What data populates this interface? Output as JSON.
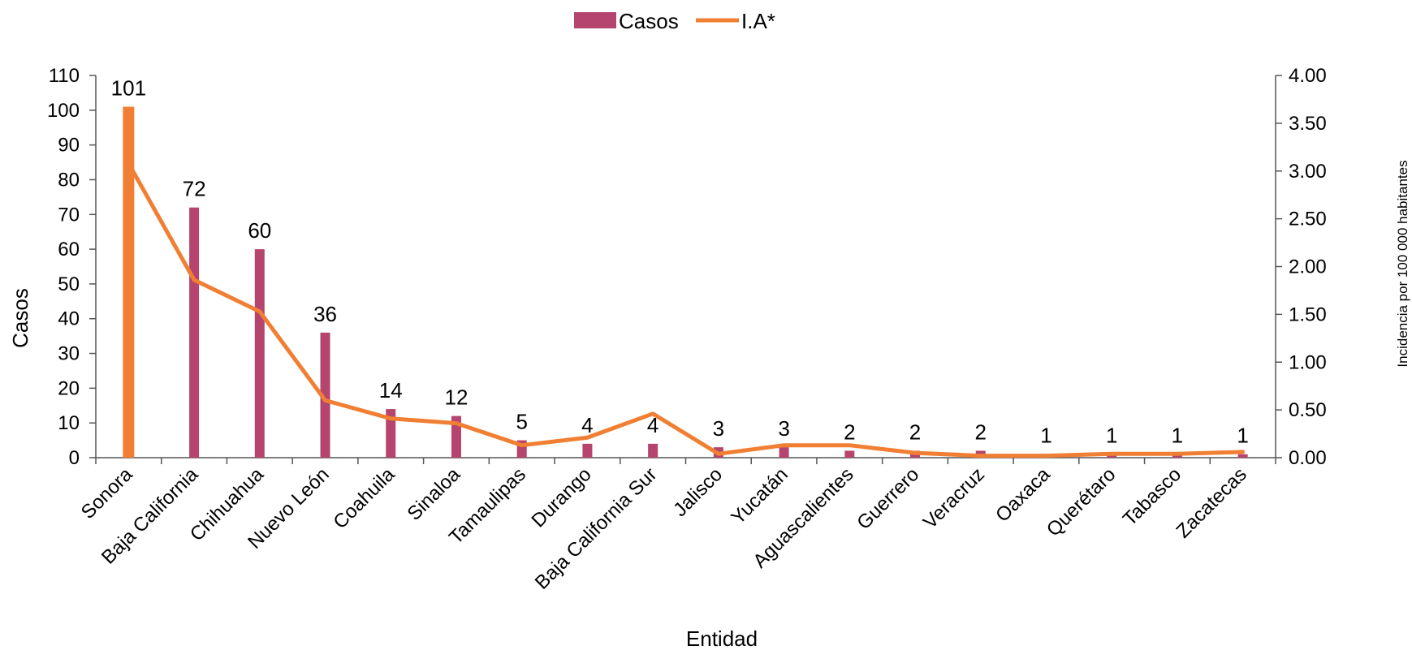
{
  "chart_data": {
    "type": "bar",
    "categories": [
      "Sonora",
      "Baja California",
      "Chihuahua",
      "Nuevo León",
      "Coahuila",
      "Sinaloa",
      "Tamaulipas",
      "Durango",
      "Baja California Sur",
      "Jalisco",
      "Yucatán",
      "Aguascalientes",
      "Guerrero",
      "Veracruz",
      "Oaxaca",
      "Querétaro",
      "Tabasco",
      "Zacatecas"
    ],
    "series": [
      {
        "name": "Casos",
        "type": "bar",
        "axis": "left",
        "color": "#B5446E",
        "values": [
          101,
          72,
          60,
          36,
          14,
          12,
          5,
          4,
          4,
          3,
          3,
          2,
          2,
          2,
          1,
          1,
          1,
          1
        ],
        "data_labels": [
          "101",
          "72",
          "60",
          "36",
          "14",
          "12",
          "5",
          "4",
          "4",
          "3",
          "3",
          "2",
          "2",
          "2",
          "1",
          "1",
          "1",
          "1"
        ]
      },
      {
        "name": "I.A*",
        "type": "line",
        "axis": "right",
        "color": "#F07F33",
        "values": [
          3.08,
          1.86,
          1.53,
          0.6,
          0.41,
          0.36,
          0.13,
          0.21,
          0.46,
          0.04,
          0.13,
          0.13,
          0.05,
          0.02,
          0.02,
          0.04,
          0.04,
          0.06
        ]
      }
    ],
    "highlight": {
      "category": "Sonora",
      "color": "#F07F33"
    },
    "xlabel": "Entidad",
    "ylabel": "Casos",
    "y2label": "Incidencia por 100 000 habitantes",
    "ylim": [
      0,
      110
    ],
    "y2lim": [
      0,
      4
    ],
    "yticks": [
      "0",
      "10",
      "20",
      "30",
      "40",
      "50",
      "60",
      "70",
      "80",
      "90",
      "100",
      "110"
    ],
    "y2ticks": [
      "0.00",
      "0.50",
      "1.00",
      "1.50",
      "2.00",
      "2.50",
      "3.00",
      "3.50",
      "4.00"
    ],
    "grid": false,
    "legend": "top-center"
  }
}
